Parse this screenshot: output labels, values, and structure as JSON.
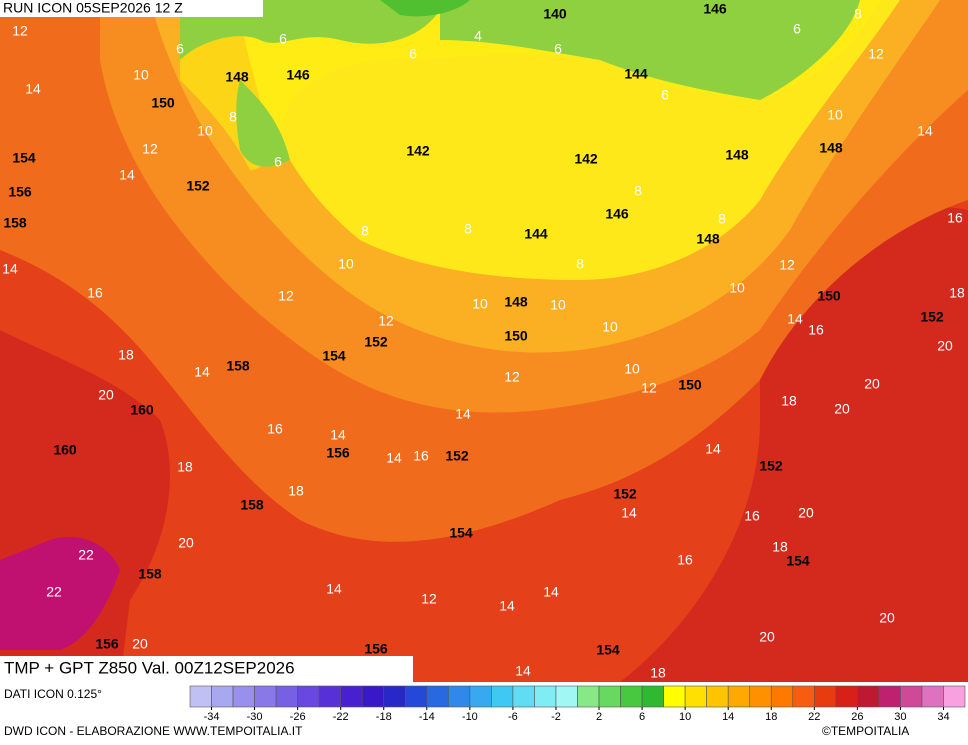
{
  "header": {
    "run": "RUN ICON 05SEP2026 12 Z"
  },
  "footer": {
    "title": "TMP + GPT Z850 Val. 00Z12SEP2026",
    "source": "DATI ICON 0.125°",
    "credit": "DWD ICON - ELABORAZIONE WWW.TEMPOITALIA.IT",
    "copyright": "©TEMPOITALIA"
  },
  "colorbar": {
    "range": [
      -36,
      36
    ],
    "ticks": [
      -34,
      -30,
      -26,
      -22,
      -18,
      -14,
      -10,
      -6,
      -2,
      2,
      6,
      10,
      14,
      18,
      22,
      26,
      30,
      34
    ],
    "colors": [
      "#c0c0f4",
      "#a8a8f0",
      "#9890ec",
      "#8878e8",
      "#7860e4",
      "#6848e0",
      "#5830d8",
      "#4820d0",
      "#3818c8",
      "#2828c8",
      "#2448d8",
      "#2868e0",
      "#3088e8",
      "#38a8f0",
      "#40c8f4",
      "#60dcf4",
      "#80ecf4",
      "#a0f8f4",
      "#88e888",
      "#68d860",
      "#48c840",
      "#30b830",
      "#ffff00",
      "#ffe000",
      "#ffc400",
      "#ffa800",
      "#ff9000",
      "#ff7800",
      "#f85c10",
      "#e83c10",
      "#d82018",
      "#c01830",
      "#c02070",
      "#d04898",
      "#e070c0",
      "#f8a0e0"
    ]
  },
  "map": {
    "gpt_labels": [
      140,
      146,
      148,
      146,
      144,
      150,
      142,
      142,
      148,
      148,
      154,
      152,
      156,
      158,
      146,
      144,
      148,
      150,
      148,
      152,
      150,
      154,
      152,
      158,
      150,
      160,
      156,
      152,
      160,
      152,
      158,
      152,
      154,
      154,
      158,
      156,
      156,
      154
    ],
    "tmp_labels": [
      12,
      6,
      6,
      6,
      4,
      6,
      6,
      8,
      12,
      14,
      10,
      8,
      10,
      6,
      10,
      14,
      12,
      14,
      6,
      8,
      8,
      16,
      8,
      8,
      10,
      8,
      12,
      14,
      16,
      12,
      10,
      18,
      10,
      10,
      12,
      14,
      16,
      10,
      20,
      18,
      14,
      10,
      12,
      12,
      20,
      20,
      18,
      20,
      14,
      16,
      14,
      14,
      16,
      14,
      18,
      18,
      14,
      16,
      20,
      20,
      22,
      18,
      16,
      22,
      14,
      14,
      12,
      14,
      20,
      20,
      20,
      14,
      18
    ]
  }
}
